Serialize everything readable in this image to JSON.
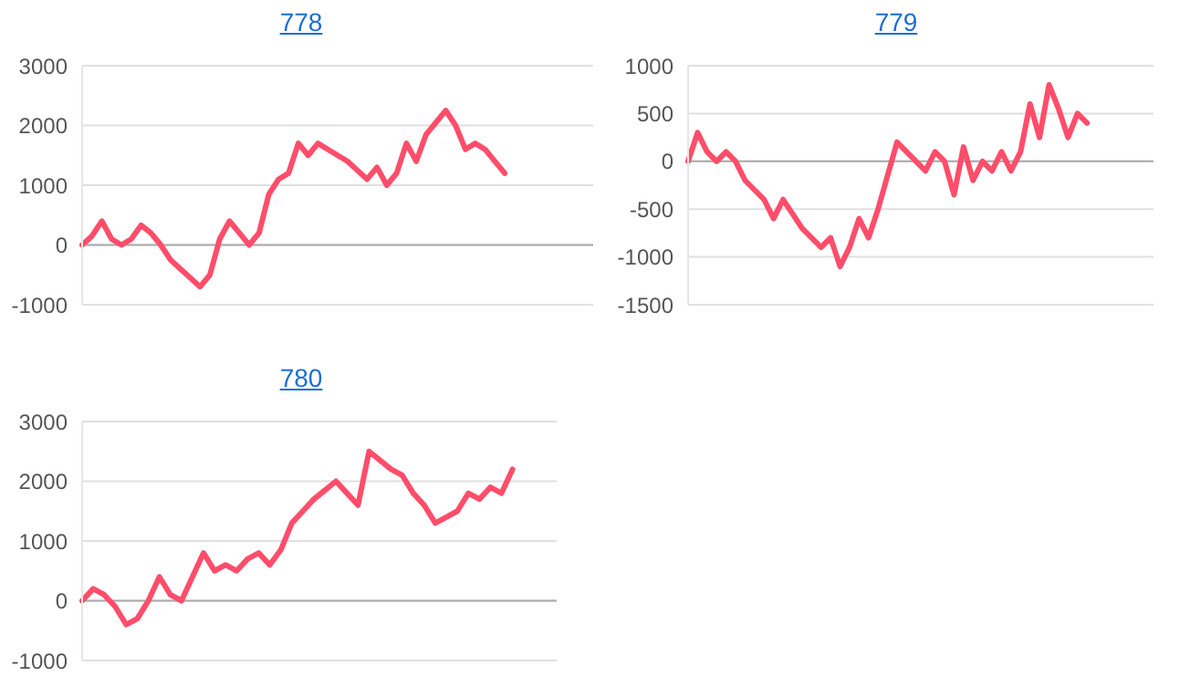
{
  "chart_data": [
    {
      "type": "line",
      "title": "778",
      "categories": [
        null,
        null,
        null,
        null,
        null,
        null,
        null,
        null,
        null,
        null,
        null,
        null,
        null,
        null,
        null,
        null,
        null,
        null,
        null,
        null,
        null,
        null,
        null,
        null,
        null,
        null,
        null,
        null,
        null,
        null,
        null,
        null,
        null,
        null,
        null,
        null,
        null,
        null,
        null,
        null,
        null,
        null,
        null,
        null,
        null,
        null,
        null,
        null,
        null,
        null,
        null,
        null,
        null
      ],
      "series": [
        {
          "color": "#ff4d6a",
          "values": [
            0,
            150,
            400,
            100,
            0,
            100,
            330,
            200,
            0,
            -250,
            -400,
            -550,
            -700,
            -500,
            100,
            400,
            200,
            0,
            200,
            850,
            1100,
            1200,
            1700,
            1500,
            1700,
            1600,
            1500,
            1400,
            1250,
            1100,
            1300,
            1000,
            1200,
            1700,
            1400,
            1850,
            2050,
            2250,
            2000,
            1600,
            1700,
            1600,
            1400,
            1200,
            null,
            null,
            null,
            null,
            null,
            null,
            null,
            null,
            null
          ]
        }
      ],
      "ylim": [
        -1000,
        3000
      ],
      "yticks": [
        -1000,
        0,
        1000,
        2000,
        3000
      ],
      "grid": "y",
      "tick_labels": "y",
      "marker": "none",
      "line_style": "solid",
      "ref_lines": [
        {
          "axis": "y",
          "value": 0,
          "color": "#aaaaaa"
        }
      ]
    },
    {
      "type": "line",
      "title": "779",
      "categories": [
        null,
        null,
        null,
        null,
        null,
        null,
        null,
        null,
        null,
        null,
        null,
        null,
        null,
        null,
        null,
        null,
        null,
        null,
        null,
        null,
        null,
        null,
        null,
        null,
        null,
        null,
        null,
        null,
        null,
        null,
        null,
        null,
        null,
        null,
        null,
        null,
        null,
        null,
        null,
        null,
        null,
        null,
        null,
        null,
        null,
        null,
        null,
        null,
        null,
        null
      ],
      "series": [
        {
          "color": "#ff4d6a",
          "values": [
            0,
            300,
            100,
            0,
            100,
            0,
            -200,
            -300,
            -400,
            -600,
            -400,
            -550,
            -700,
            -800,
            -900,
            -800,
            -1100,
            -900,
            -600,
            -800,
            -500,
            -150,
            200,
            100,
            0,
            -100,
            100,
            0,
            -350,
            150,
            -200,
            0,
            -100,
            100,
            -100,
            100,
            600,
            250,
            800,
            550,
            250,
            500,
            400,
            null,
            null,
            null,
            null,
            null,
            null,
            null
          ]
        }
      ],
      "ylim": [
        -1500,
        1000
      ],
      "yticks": [
        -1500,
        -1000,
        -500,
        0,
        500,
        1000
      ],
      "grid": "y",
      "tick_labels": "y",
      "marker": "none",
      "line_style": "solid",
      "ref_lines": [
        {
          "axis": "y",
          "value": 0,
          "color": "#aaaaaa"
        }
      ]
    },
    {
      "type": "line",
      "title": "780",
      "categories": [
        null,
        null,
        null,
        null,
        null,
        null,
        null,
        null,
        null,
        null,
        null,
        null,
        null,
        null,
        null,
        null,
        null,
        null,
        null,
        null,
        null,
        null,
        null,
        null,
        null,
        null,
        null,
        null,
        null,
        null,
        null,
        null,
        null,
        null,
        null,
        null,
        null,
        null,
        null,
        null,
        null,
        null,
        null,
        null
      ],
      "series": [
        {
          "color": "#ff4d6a",
          "values": [
            0,
            200,
            100,
            -100,
            -400,
            -300,
            0,
            400,
            100,
            0,
            400,
            800,
            500,
            600,
            500,
            700,
            800,
            600,
            850,
            1300,
            1500,
            1700,
            1850,
            2000,
            1800,
            1600,
            2500,
            2350,
            2200,
            2100,
            1800,
            1600,
            1300,
            1400,
            1500,
            1800,
            1700,
            1900,
            1800,
            2200,
            null,
            null,
            null,
            null
          ]
        }
      ],
      "ylim": [
        -1000,
        3000
      ],
      "yticks": [
        -1000,
        0,
        1000,
        2000,
        3000
      ],
      "grid": "y",
      "tick_labels": "y",
      "marker": "none",
      "line_style": "solid",
      "ref_lines": [
        {
          "axis": "y",
          "value": 0,
          "color": "#aaaaaa"
        }
      ]
    }
  ]
}
